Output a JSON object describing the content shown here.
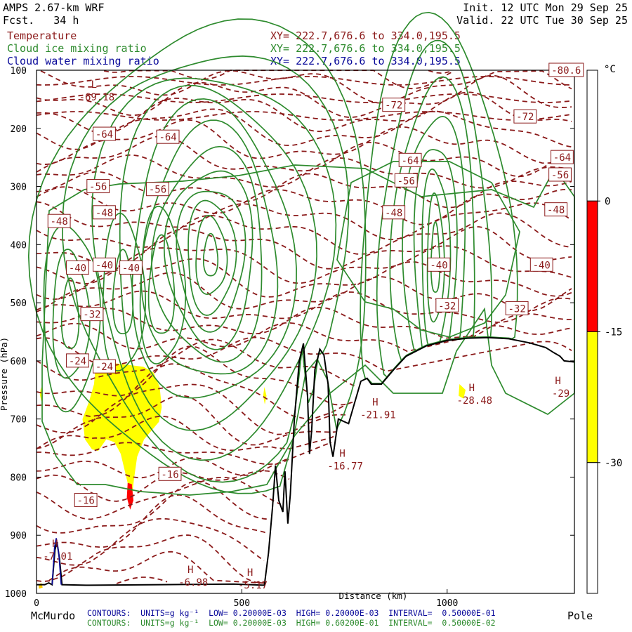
{
  "header": {
    "model": "AMPS 2.67-km WRF",
    "forecast": "Fcst.   34 h",
    "init": "Init. 12 UTC Mon 29 Sep 25",
    "valid": "Valid. 22 UTC Tue 30 Sep 25"
  },
  "fields": [
    {
      "name": "Temperature",
      "xy": "XY= 222.7,676.6 to 334.0,195.5",
      "color": "#8b1a1a"
    },
    {
      "name": "Cloud ice mixing ratio",
      "xy": "XY= 222.7,676.6 to 334.0,195.5",
      "color": "#2e8b2e"
    },
    {
      "name": "Cloud water mixing ratio",
      "xy": "XY= 222.7,676.6 to 334.0,195.5",
      "color": "#0a0a9a"
    }
  ],
  "footer": {
    "left_label": "McMurdo",
    "right_label": "Pole",
    "contours": [
      {
        "text": "CONTOURS:  UNITS=g kg⁻¹  LOW= 0.20000E-03  HIGH= 0.20000E-03  INTERVAL=  0.50000E-01",
        "color": "#0a0a9a"
      },
      {
        "text": "CONTOURS:  UNITS=g kg⁻¹  LOW= 0.20000E-03  HIGH= 0.60200E-01  INTERVAL=  0.50000E-02",
        "color": "#2e8b2e"
      }
    ]
  },
  "chart_data": {
    "type": "cross-section",
    "xlabel": "Distance (km)",
    "ylabel": "Pressure (hPa)",
    "xlim": [
      0,
      1310
    ],
    "ylim": [
      1000,
      100
    ],
    "x_ticks": [
      0,
      500,
      1000
    ],
    "y_ticks": [
      100,
      200,
      300,
      400,
      500,
      600,
      700,
      800,
      900,
      1000
    ],
    "colorbar": {
      "unit": "°C",
      "ticks": [
        "0",
        "-15",
        "-30"
      ],
      "bands": [
        {
          "range": "above 0",
          "color": "#ffffff"
        },
        {
          "range": "-15 to 0",
          "color": "#ff0000"
        },
        {
          "range": "-30 to -15",
          "color": "#ffff00"
        },
        {
          "range": "below -30",
          "color": "#ffffff"
        }
      ]
    },
    "temperature_labels": [
      {
        "x": 165,
        "p": 210,
        "text": "-64"
      },
      {
        "x": 320,
        "p": 215,
        "text": "-64"
      },
      {
        "x": 910,
        "p": 255,
        "text": "-64"
      },
      {
        "x": 1280,
        "p": 250,
        "text": "-64"
      },
      {
        "x": 870,
        "p": 160,
        "text": "-72"
      },
      {
        "x": 1190,
        "p": 180,
        "text": "-72"
      },
      {
        "x": 150,
        "p": 300,
        "text": "-56"
      },
      {
        "x": 295,
        "p": 305,
        "text": "-56"
      },
      {
        "x": 900,
        "p": 290,
        "text": "-56"
      },
      {
        "x": 1275,
        "p": 280,
        "text": "-56"
      },
      {
        "x": 55,
        "p": 360,
        "text": "-48"
      },
      {
        "x": 165,
        "p": 345,
        "text": "-48"
      },
      {
        "x": 870,
        "p": 345,
        "text": "-48"
      },
      {
        "x": 1265,
        "p": 340,
        "text": "-48"
      },
      {
        "x": 100,
        "p": 440,
        "text": "-40"
      },
      {
        "x": 165,
        "p": 435,
        "text": "-40"
      },
      {
        "x": 230,
        "p": 440,
        "text": "-40"
      },
      {
        "x": 980,
        "p": 435,
        "text": "-40"
      },
      {
        "x": 1230,
        "p": 435,
        "text": "-40"
      },
      {
        "x": 135,
        "p": 520,
        "text": "-32"
      },
      {
        "x": 1000,
        "p": 505,
        "text": "-32"
      },
      {
        "x": 1170,
        "p": 510,
        "text": "-32"
      },
      {
        "x": 100,
        "p": 600,
        "text": "-24"
      },
      {
        "x": 165,
        "p": 610,
        "text": "-24"
      },
      {
        "x": 325,
        "p": 795,
        "text": "-16"
      },
      {
        "x": 120,
        "p": 840,
        "text": "-16"
      },
      {
        "x": 1290,
        "p": 100,
        "text": "-80.6"
      }
    ],
    "extrema": [
      {
        "kind": "L",
        "x": 140,
        "p": 130,
        "value": "-69.18"
      },
      {
        "kind": "H",
        "x": 45,
        "p": 920,
        "value": "-7.01"
      },
      {
        "kind": "H",
        "x": 375,
        "p": 965,
        "value": "-6.98"
      },
      {
        "kind": "H",
        "x": 520,
        "p": 970,
        "value": "-5.17"
      },
      {
        "kind": "H",
        "x": 825,
        "p": 677,
        "value": "-21.91"
      },
      {
        "kind": "H",
        "x": 745,
        "p": 765,
        "value": "-16.77"
      },
      {
        "kind": "H",
        "x": 1060,
        "p": 652,
        "value": "-28.48"
      },
      {
        "kind": "H",
        "x": 1270,
        "p": 640,
        "value": "-29"
      }
    ],
    "terrain": [
      [
        0,
        985
      ],
      [
        20,
        985
      ],
      [
        30,
        982
      ],
      [
        38,
        985
      ],
      [
        45,
        925
      ],
      [
        50,
        912
      ],
      [
        56,
        940
      ],
      [
        62,
        985
      ],
      [
        120,
        986
      ],
      [
        300,
        985
      ],
      [
        480,
        984
      ],
      [
        555,
        986
      ],
      [
        565,
        930
      ],
      [
        575,
        850
      ],
      [
        582,
        780
      ],
      [
        590,
        840
      ],
      [
        600,
        860
      ],
      [
        605,
        790
      ],
      [
        612,
        880
      ],
      [
        618,
        830
      ],
      [
        628,
        700
      ],
      [
        640,
        600
      ],
      [
        650,
        570
      ],
      [
        660,
        660
      ],
      [
        665,
        760
      ],
      [
        670,
        720
      ],
      [
        678,
        615
      ],
      [
        690,
        580
      ],
      [
        700,
        590
      ],
      [
        710,
        640
      ],
      [
        715,
        740
      ],
      [
        722,
        765
      ],
      [
        735,
        700
      ],
      [
        760,
        708
      ],
      [
        790,
        635
      ],
      [
        805,
        630
      ],
      [
        815,
        640
      ],
      [
        840,
        640
      ],
      [
        870,
        615
      ],
      [
        900,
        592
      ],
      [
        950,
        574
      ],
      [
        1000,
        565
      ],
      [
        1050,
        561
      ],
      [
        1100,
        560
      ],
      [
        1150,
        562
      ],
      [
        1200,
        569
      ],
      [
        1240,
        577
      ],
      [
        1260,
        586
      ],
      [
        1275,
        592
      ],
      [
        1285,
        600
      ],
      [
        1310,
        602
      ]
    ],
    "temperature_interval": 4,
    "ice_contour_interval": 0.005,
    "water_contour_interval": 0.05
  }
}
